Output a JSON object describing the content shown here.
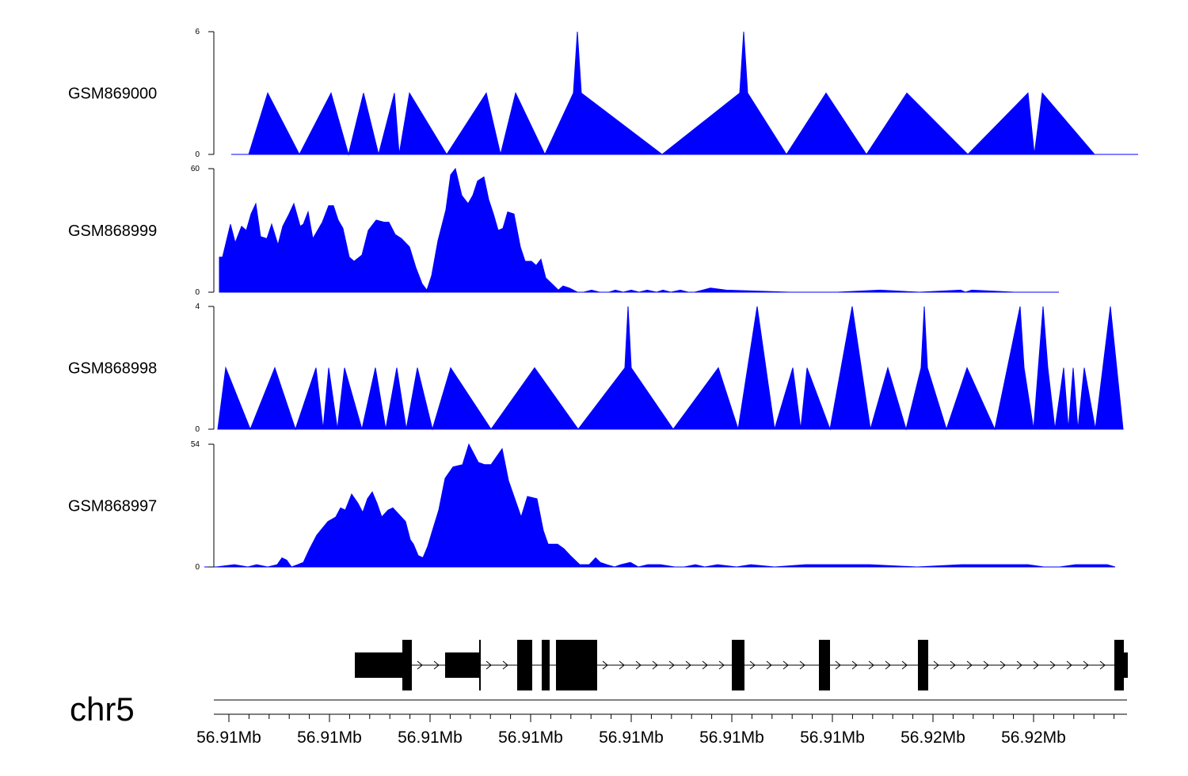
{
  "chart_data": {
    "type": "area",
    "chromosome": "chr5",
    "colors": {
      "signal": "#0000ff",
      "axis": "#000000",
      "gene": "#000000"
    },
    "tracks": [
      {
        "name": "GSM869000",
        "ylim": [
          0,
          6
        ],
        "tick_labels": [
          "6",
          "0"
        ],
        "points": [
          [
            0,
            0
          ],
          [
            22,
            0
          ],
          [
            46,
            3
          ],
          [
            86,
            0
          ],
          [
            126,
            3
          ],
          [
            148,
            0
          ],
          [
            167,
            3
          ],
          [
            186,
            0
          ],
          [
            206,
            3
          ],
          [
            212,
            0
          ],
          [
            225,
            3
          ],
          [
            272,
            0
          ],
          [
            322,
            3
          ],
          [
            340,
            0
          ],
          [
            359,
            3
          ],
          [
            396,
            0
          ],
          [
            432,
            3
          ],
          [
            437,
            6
          ],
          [
            442,
            3
          ],
          [
            544,
            0
          ],
          [
            642,
            3
          ],
          [
            647,
            6
          ],
          [
            652,
            3
          ],
          [
            701,
            0
          ],
          [
            751,
            3
          ],
          [
            802,
            0
          ],
          [
            853,
            3
          ],
          [
            930,
            0
          ],
          [
            1006,
            3
          ],
          [
            1014,
            0
          ],
          [
            1024,
            3
          ],
          [
            1090,
            0
          ],
          [
            1145,
            0
          ]
        ]
      },
      {
        "name": "GSM868999",
        "ylim": [
          0,
          60
        ],
        "tick_labels": [
          "60",
          "0"
        ],
        "points": [
          [
            0,
            17
          ],
          [
            4,
            17
          ],
          [
            14,
            33
          ],
          [
            20,
            24
          ],
          [
            28,
            32
          ],
          [
            34,
            30
          ],
          [
            40,
            38
          ],
          [
            46,
            43
          ],
          [
            52,
            27
          ],
          [
            60,
            26
          ],
          [
            66,
            33
          ],
          [
            74,
            23
          ],
          [
            80,
            32
          ],
          [
            88,
            38
          ],
          [
            94,
            43
          ],
          [
            102,
            32
          ],
          [
            106,
            33
          ],
          [
            112,
            39
          ],
          [
            118,
            26
          ],
          [
            124,
            30
          ],
          [
            130,
            34
          ],
          [
            138,
            42
          ],
          [
            144,
            42
          ],
          [
            150,
            35
          ],
          [
            156,
            31
          ],
          [
            164,
            17
          ],
          [
            170,
            15
          ],
          [
            180,
            18
          ],
          [
            188,
            30
          ],
          [
            198,
            35
          ],
          [
            208,
            34
          ],
          [
            214,
            34
          ],
          [
            222,
            28
          ],
          [
            230,
            26
          ],
          [
            240,
            22
          ],
          [
            248,
            12
          ],
          [
            256,
            4
          ],
          [
            262,
            1
          ],
          [
            268,
            8
          ],
          [
            276,
            25
          ],
          [
            286,
            40
          ],
          [
            292,
            57
          ],
          [
            298,
            60
          ],
          [
            306,
            47
          ],
          [
            314,
            43
          ],
          [
            320,
            47
          ],
          [
            326,
            54
          ],
          [
            334,
            56
          ],
          [
            340,
            45
          ],
          [
            346,
            38
          ],
          [
            352,
            30
          ],
          [
            358,
            31
          ],
          [
            364,
            39
          ],
          [
            372,
            38
          ],
          [
            380,
            22
          ],
          [
            386,
            15
          ],
          [
            394,
            15
          ],
          [
            400,
            13
          ],
          [
            406,
            16
          ],
          [
            412,
            7
          ],
          [
            420,
            4
          ],
          [
            428,
            1
          ],
          [
            434,
            3
          ],
          [
            442,
            2
          ],
          [
            452,
            0
          ],
          [
            460,
            0
          ],
          [
            470,
            1
          ],
          [
            480,
            0
          ],
          [
            492,
            0
          ],
          [
            500,
            1
          ],
          [
            510,
            0
          ],
          [
            520,
            1
          ],
          [
            530,
            0
          ],
          [
            540,
            1
          ],
          [
            552,
            0
          ],
          [
            560,
            1
          ],
          [
            570,
            0
          ],
          [
            582,
            1
          ],
          [
            592,
            0
          ],
          [
            600,
            0
          ],
          [
            620,
            2
          ],
          [
            640,
            1
          ],
          [
            720,
            0
          ],
          [
            780,
            0
          ],
          [
            834,
            1
          ],
          [
            884,
            0
          ],
          [
            936,
            1
          ],
          [
            942,
            0
          ],
          [
            950,
            1
          ],
          [
            1004,
            0
          ],
          [
            1052,
            0
          ],
          [
            1060,
            0
          ]
        ]
      },
      {
        "name": "GSM868998",
        "ylim": [
          0,
          4
        ],
        "tick_labels": [
          "4",
          "0"
        ],
        "points": [
          [
            0,
            0
          ],
          [
            10,
            2
          ],
          [
            41,
            0
          ],
          [
            72,
            2
          ],
          [
            98,
            0
          ],
          [
            124,
            2
          ],
          [
            133,
            0
          ],
          [
            140,
            2
          ],
          [
            151,
            0
          ],
          [
            160,
            2
          ],
          [
            182,
            0
          ],
          [
            199,
            2
          ],
          [
            212,
            0
          ],
          [
            226,
            2
          ],
          [
            238,
            0
          ],
          [
            252,
            2
          ],
          [
            271,
            0
          ],
          [
            294,
            2
          ],
          [
            345,
            0
          ],
          [
            400,
            2
          ],
          [
            455,
            0
          ],
          [
            514,
            2
          ],
          [
            518,
            4
          ],
          [
            522,
            2
          ],
          [
            575,
            0
          ],
          [
            632,
            2
          ],
          [
            657,
            0
          ],
          [
            681,
            4
          ],
          [
            703,
            0
          ],
          [
            726,
            2
          ],
          [
            736,
            0
          ],
          [
            744,
            2
          ],
          [
            773,
            0
          ],
          [
            801,
            4
          ],
          [
            824,
            0
          ],
          [
            846,
            2
          ],
          [
            869,
            0
          ],
          [
            888,
            2
          ],
          [
            892,
            4
          ],
          [
            896,
            2
          ],
          [
            920,
            0
          ],
          [
            946,
            2
          ],
          [
            981,
            0
          ],
          [
            1013,
            4
          ],
          [
            1018,
            2
          ],
          [
            1030,
            0
          ],
          [
            1042,
            4
          ],
          [
            1048,
            2
          ],
          [
            1057,
            0
          ],
          [
            1068,
            2
          ],
          [
            1074,
            0
          ],
          [
            1080,
            2
          ],
          [
            1086,
            0
          ],
          [
            1094,
            2
          ],
          [
            1108,
            0
          ],
          [
            1127,
            4
          ],
          [
            1143,
            0
          ]
        ]
      },
      {
        "name": "GSM868997",
        "ylim": [
          0,
          54
        ],
        "tick_labels": [
          "54",
          "0"
        ],
        "points": [
          [
            0,
            0
          ],
          [
            15,
            0
          ],
          [
            38,
            1
          ],
          [
            55,
            0
          ],
          [
            66,
            1
          ],
          [
            80,
            0
          ],
          [
            92,
            1
          ],
          [
            98,
            4
          ],
          [
            104,
            3
          ],
          [
            110,
            0
          ],
          [
            118,
            1
          ],
          [
            125,
            2
          ],
          [
            133,
            8
          ],
          [
            142,
            14
          ],
          [
            156,
            20
          ],
          [
            166,
            22
          ],
          [
            172,
            26
          ],
          [
            178,
            25
          ],
          [
            186,
            32
          ],
          [
            194,
            28
          ],
          [
            200,
            24
          ],
          [
            206,
            30
          ],
          [
            212,
            33
          ],
          [
            218,
            28
          ],
          [
            224,
            22
          ],
          [
            232,
            25
          ],
          [
            238,
            26
          ],
          [
            246,
            23
          ],
          [
            254,
            20
          ],
          [
            260,
            12
          ],
          [
            264,
            10
          ],
          [
            270,
            5
          ],
          [
            276,
            4
          ],
          [
            282,
            9
          ],
          [
            288,
            16
          ],
          [
            296,
            25
          ],
          [
            304,
            39
          ],
          [
            314,
            44
          ],
          [
            326,
            45
          ],
          [
            334,
            54
          ],
          [
            346,
            46
          ],
          [
            354,
            45
          ],
          [
            362,
            45
          ],
          [
            368,
            48
          ],
          [
            376,
            52
          ],
          [
            384,
            38
          ],
          [
            392,
            30
          ],
          [
            400,
            22
          ],
          [
            408,
            31
          ],
          [
            420,
            30
          ],
          [
            428,
            16
          ],
          [
            434,
            10
          ],
          [
            446,
            10
          ],
          [
            454,
            8
          ],
          [
            462,
            5
          ],
          [
            474,
            1
          ],
          [
            486,
            1
          ],
          [
            494,
            4
          ],
          [
            500,
            2
          ],
          [
            508,
            1
          ],
          [
            518,
            0
          ],
          [
            526,
            1
          ],
          [
            538,
            2
          ],
          [
            548,
            0
          ],
          [
            560,
            1
          ],
          [
            576,
            1
          ],
          [
            594,
            0
          ],
          [
            606,
            0
          ],
          [
            620,
            1
          ],
          [
            632,
            0
          ],
          [
            648,
            1
          ],
          [
            672,
            0
          ],
          [
            690,
            1
          ],
          [
            720,
            0
          ],
          [
            760,
            1
          ],
          [
            840,
            1
          ],
          [
            900,
            0
          ],
          [
            956,
            1
          ],
          [
            1000,
            1
          ],
          [
            1020,
            1
          ],
          [
            1040,
            1
          ],
          [
            1060,
            0
          ],
          [
            1080,
            0
          ],
          [
            1100,
            1
          ],
          [
            1120,
            1
          ],
          [
            1140,
            1
          ],
          [
            1150,
            0
          ]
        ]
      }
    ],
    "x_axis": {
      "tick_labels": [
        "56.91Mb",
        "56.91Mb",
        "56.91Mb",
        "56.91Mb",
        "56.91Mb",
        "56.91Mb",
        "56.91Mb",
        "56.92Mb",
        "56.92Mb"
      ]
    },
    "gene_model": {
      "strand": "+",
      "exons": [
        {
          "start": 0,
          "end": 60,
          "kind": "utr"
        },
        {
          "start": 60,
          "end": 72,
          "kind": "cds"
        },
        {
          "start": 114,
          "end": 157,
          "kind": "utr"
        },
        {
          "start": 157,
          "end": 159,
          "kind": "cds"
        },
        {
          "start": 205,
          "end": 224,
          "kind": "cds"
        },
        {
          "start": 236,
          "end": 246,
          "kind": "cds"
        },
        {
          "start": 254,
          "end": 306,
          "kind": "cds"
        },
        {
          "start": 476,
          "end": 492,
          "kind": "cds"
        },
        {
          "start": 586,
          "end": 600,
          "kind": "cds"
        },
        {
          "start": 711,
          "end": 724,
          "kind": "cds"
        },
        {
          "start": 959,
          "end": 971,
          "kind": "cds"
        },
        {
          "start": 971,
          "end": 976,
          "kind": "utr"
        }
      ]
    }
  }
}
